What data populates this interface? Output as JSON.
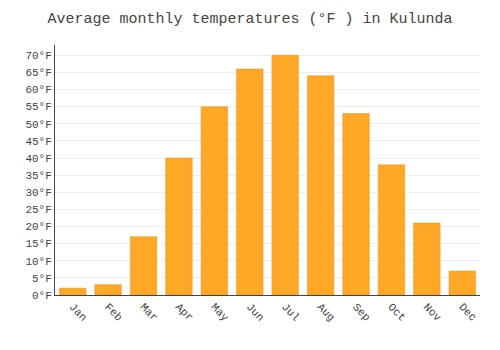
{
  "chart_data": {
    "type": "bar",
    "title": "Average monthly temperatures (°F ) in Kulunda",
    "categories": [
      "Jan",
      "Feb",
      "Mar",
      "Apr",
      "May",
      "Jun",
      "Jul",
      "Aug",
      "Sep",
      "Oct",
      "Nov",
      "Dec"
    ],
    "values": [
      2,
      3,
      17,
      40,
      55,
      66,
      70,
      64,
      53,
      38,
      21,
      7
    ],
    "color": "#FFA726",
    "ylim": [
      0,
      73
    ],
    "yticks": [
      {
        "value": 0,
        "label": "0°F"
      },
      {
        "value": 5,
        "label": "5°F"
      },
      {
        "value": 10,
        "label": "10°F"
      },
      {
        "value": 15,
        "label": "15°F"
      },
      {
        "value": 20,
        "label": "20°F"
      },
      {
        "value": 25,
        "label": "25°F"
      },
      {
        "value": 30,
        "label": "30°F"
      },
      {
        "value": 35,
        "label": "35°F"
      },
      {
        "value": 40,
        "label": "40°F"
      },
      {
        "value": 45,
        "label": "45°F"
      },
      {
        "value": 50,
        "label": "50°F"
      },
      {
        "value": 55,
        "label": "55°F"
      },
      {
        "value": 60,
        "label": "60°F"
      },
      {
        "value": 65,
        "label": "65°F"
      },
      {
        "value": 70,
        "label": "70°F"
      }
    ],
    "grid": true
  }
}
